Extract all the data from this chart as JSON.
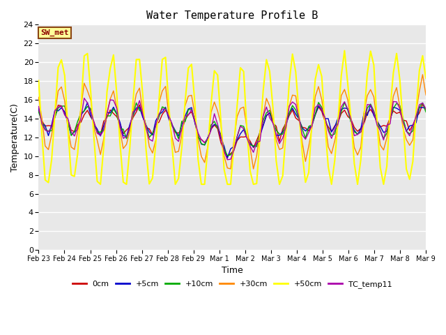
{
  "title": "Water Temperature Profile B",
  "xlabel": "Time",
  "ylabel": "Temperature(C)",
  "ylim": [
    0,
    24
  ],
  "yticks": [
    0,
    2,
    4,
    6,
    8,
    10,
    12,
    14,
    16,
    18,
    20,
    22,
    24
  ],
  "bg_color": "#e8e8e8",
  "annotation_text": "SW_met",
  "annotation_color": "#8b0000",
  "annotation_bg": "#ffff99",
  "annotation_border": "#8b4513",
  "x_labels": [
    "Feb 23",
    "Feb 24",
    "Feb 25",
    "Feb 26",
    "Feb 27",
    "Feb 28",
    "Feb 29",
    "Mar 1",
    "Mar 2",
    "Mar 3",
    "Mar 4",
    "Mar 5",
    "Mar 6",
    "Mar 7",
    "Mar 8",
    "Mar 9"
  ],
  "series_order": [
    "0cm",
    "+5cm",
    "+10cm",
    "+30cm",
    "+50cm",
    "TC_temp11"
  ],
  "series": {
    "0cm": {
      "color": "#cc0000",
      "lw": 1.0
    },
    "+5cm": {
      "color": "#0000cc",
      "lw": 1.0
    },
    "+10cm": {
      "color": "#00aa00",
      "lw": 1.0
    },
    "+30cm": {
      "color": "#ff8800",
      "lw": 1.0
    },
    "+50cm": {
      "color": "#ffff00",
      "lw": 1.5
    },
    "TC_temp11": {
      "color": "#aa00aa",
      "lw": 1.0
    }
  },
  "n_days": 15,
  "pts_per_day": 8
}
